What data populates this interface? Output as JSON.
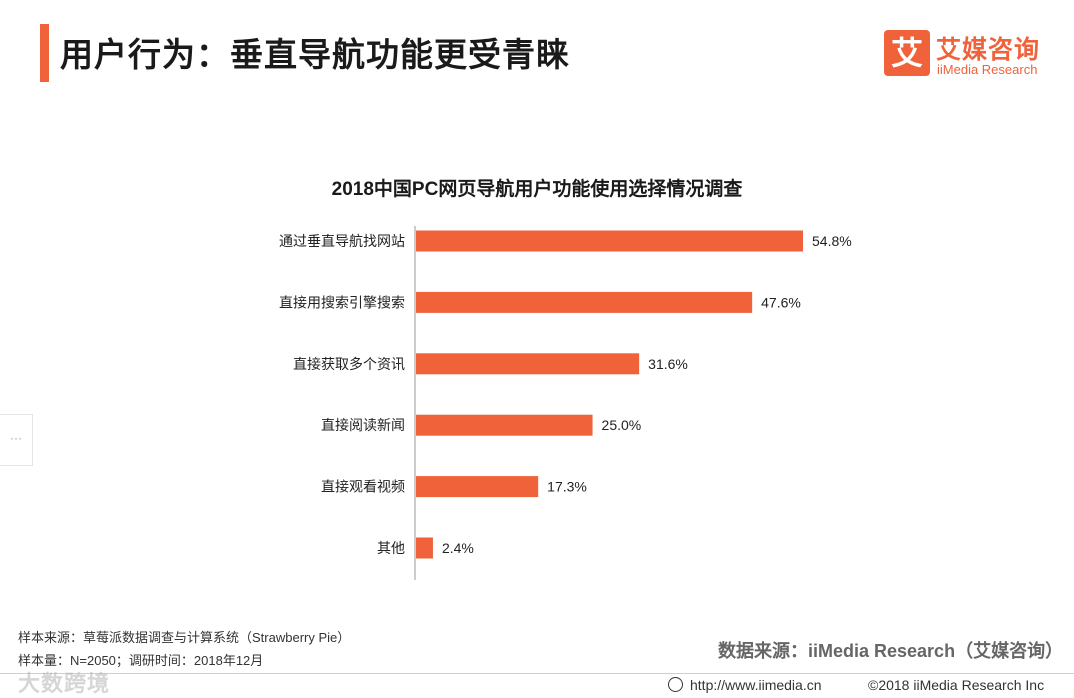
{
  "header": {
    "title": "用户行为：垂直导航功能更受青睐"
  },
  "logo": {
    "mark": "艾",
    "name_cn": "艾媒咨询",
    "name_en": "iiMedia Research"
  },
  "side_tab": {
    "label": "···"
  },
  "chart_data": {
    "type": "bar",
    "orientation": "horizontal",
    "title": "2018中国PC网页导航用户功能使用选择情况调查",
    "categories": [
      "通过垂直导航找网站",
      "直接用搜索引擎搜索",
      "直接获取多个资讯",
      "直接阅读新闻",
      "直接观看视频",
      "其他"
    ],
    "values": [
      54.8,
      47.6,
      31.6,
      25.0,
      17.3,
      2.4
    ],
    "value_labels": [
      "54.8%",
      "47.6%",
      "31.6%",
      "25.0%",
      "17.3%",
      "2.4%"
    ],
    "unit": "%",
    "xlim": [
      0,
      60
    ],
    "bar_color": "#f0623a",
    "grid": false,
    "legend": "none"
  },
  "footer": {
    "sample_source": "样本来源：草莓派数据调查与计算系统（Strawberry Pie）",
    "sample_size": "样本量：N=2050；调研时间：2018年12月",
    "data_source": "数据来源：iiMedia Research（艾媒咨询）",
    "url": "http://www.iimedia.cn",
    "copyright": "©2018  iiMedia Research  Inc",
    "watermark": "大数跨境"
  }
}
